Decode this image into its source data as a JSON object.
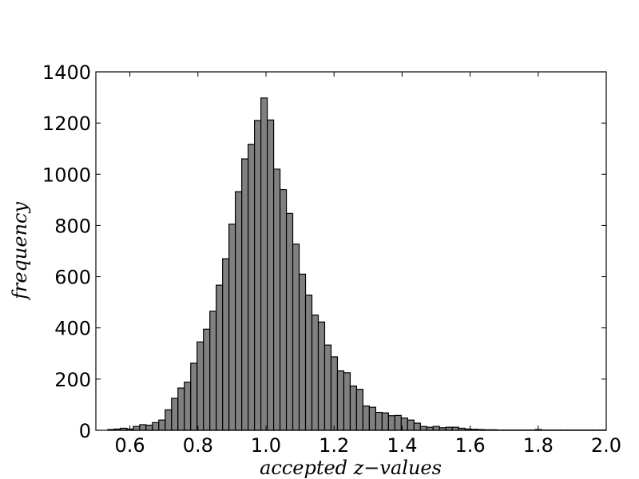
{
  "chart_data": {
    "type": "bar",
    "title": "",
    "xlabel": "accepted z−values",
    "ylabel": "frequency",
    "xlim": [
      0.5,
      2.0
    ],
    "ylim": [
      0,
      1400
    ],
    "grid": false,
    "x_ticks": [
      "0.6",
      "0.8",
      "1.0",
      "1.2",
      "1.4",
      "1.6",
      "1.8",
      "2.0"
    ],
    "y_ticks": [
      "0",
      "200",
      "400",
      "600",
      "800",
      "1000",
      "1200",
      "1400"
    ],
    "bin_width": 0.01875,
    "bin_edges_start": 0.535,
    "values": [
      3,
      5,
      8,
      5,
      15,
      22,
      20,
      30,
      40,
      80,
      125,
      165,
      188,
      262,
      345,
      395,
      465,
      567,
      670,
      805,
      932,
      1060,
      1117,
      1210,
      1298,
      1212,
      1020,
      940,
      847,
      727,
      610,
      528,
      450,
      423,
      333,
      287,
      232,
      225,
      173,
      160,
      95,
      90,
      70,
      68,
      57,
      58,
      48,
      40,
      28,
      15,
      12,
      15,
      10,
      12,
      12,
      8,
      5,
      4,
      3,
      2,
      2,
      1,
      1,
      1,
      1,
      1,
      1,
      3,
      1,
      1,
      1,
      1,
      1,
      1,
      1,
      1,
      1,
      1
    ]
  }
}
